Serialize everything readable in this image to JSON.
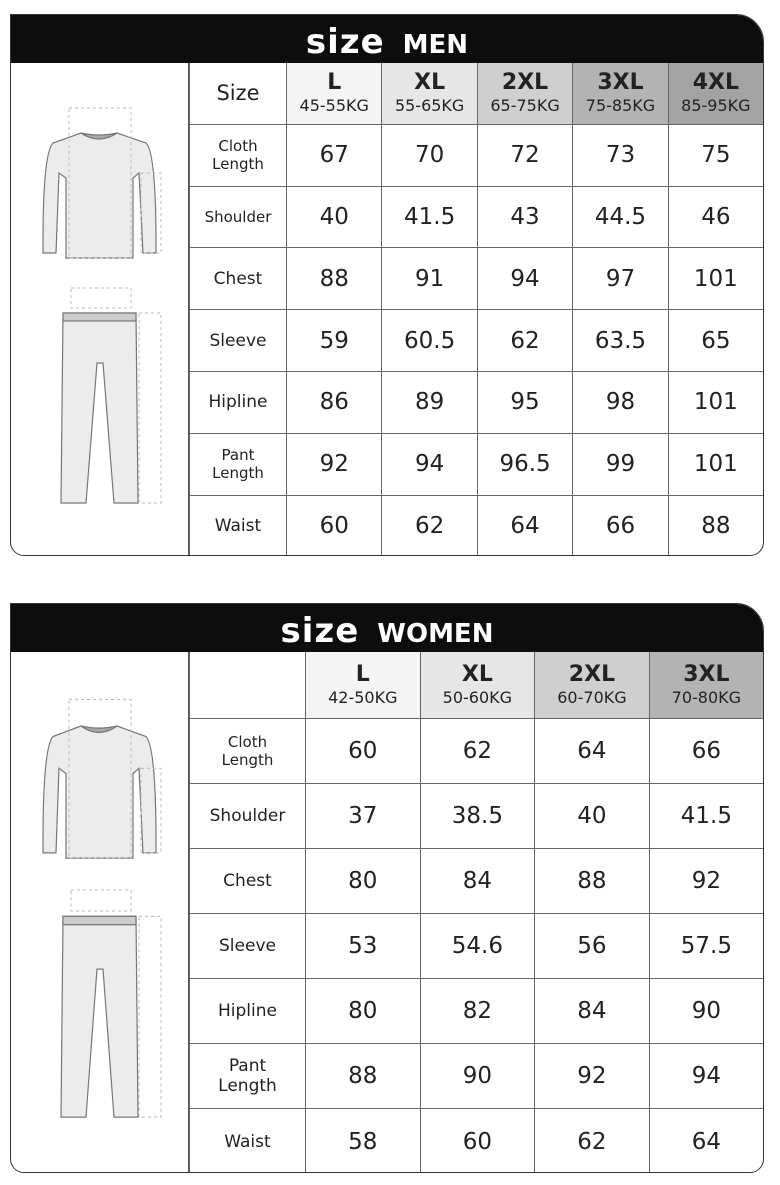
{
  "men": {
    "title_big": "size",
    "title_small": "MEN",
    "corner_label": "Size",
    "sizes": [
      {
        "name": "L",
        "kg": "45-55KG",
        "bg": "#f4f4f4"
      },
      {
        "name": "XL",
        "kg": "55-65KG",
        "bg": "#e6e6e6"
      },
      {
        "name": "2XL",
        "kg": "65-75KG",
        "bg": "#cfcfcf"
      },
      {
        "name": "3XL",
        "kg": "75-85KG",
        "bg": "#b3b3b3"
      },
      {
        "name": "4XL",
        "kg": "85-95KG",
        "bg": "#a3a3a3"
      }
    ],
    "rows": [
      {
        "label": "Cloth Length",
        "values": [
          "67",
          "70",
          "72",
          "73",
          "75"
        ]
      },
      {
        "label": "Shoulder",
        "values": [
          "40",
          "41.5",
          "43",
          "44.5",
          "46"
        ]
      },
      {
        "label": "Chest",
        "values": [
          "88",
          "91",
          "94",
          "97",
          "101"
        ]
      },
      {
        "label": "Sleeve",
        "values": [
          "59",
          "60.5",
          "62",
          "63.5",
          "65"
        ]
      },
      {
        "label": "Hipline",
        "values": [
          "86",
          "89",
          "95",
          "98",
          "101"
        ]
      },
      {
        "label": "Pant Length",
        "values": [
          "92",
          "94",
          "96.5",
          "99",
          "101"
        ]
      },
      {
        "label": "Waist",
        "values": [
          "60",
          "62",
          "64",
          "66",
          "88"
        ]
      }
    ]
  },
  "women": {
    "title_big": "size",
    "title_small": "WOMEN",
    "corner_label": "",
    "sizes": [
      {
        "name": "L",
        "kg": "42-50KG",
        "bg": "#f4f4f4"
      },
      {
        "name": "XL",
        "kg": "50-60KG",
        "bg": "#e6e6e6"
      },
      {
        "name": "2XL",
        "kg": "60-70KG",
        "bg": "#cfcfcf"
      },
      {
        "name": "3XL",
        "kg": "70-80KG",
        "bg": "#b3b3b3"
      }
    ],
    "rows": [
      {
        "label": "Cloth Length",
        "values": [
          "60",
          "62",
          "64",
          "66"
        ]
      },
      {
        "label": "Shoulder",
        "values": [
          "37",
          "38.5",
          "40",
          "41.5"
        ]
      },
      {
        "label": "Chest",
        "values": [
          "80",
          "84",
          "88",
          "92"
        ]
      },
      {
        "label": "Sleeve",
        "values": [
          "53",
          "54.6",
          "56",
          "57.5"
        ]
      },
      {
        "label": "Hipline",
        "values": [
          "80",
          "82",
          "84",
          "90"
        ]
      },
      {
        "label": "Pant Length",
        "values": [
          "88",
          "90",
          "92",
          "94"
        ]
      },
      {
        "label": "Waist",
        "values": [
          "58",
          "60",
          "62",
          "64"
        ]
      }
    ]
  }
}
